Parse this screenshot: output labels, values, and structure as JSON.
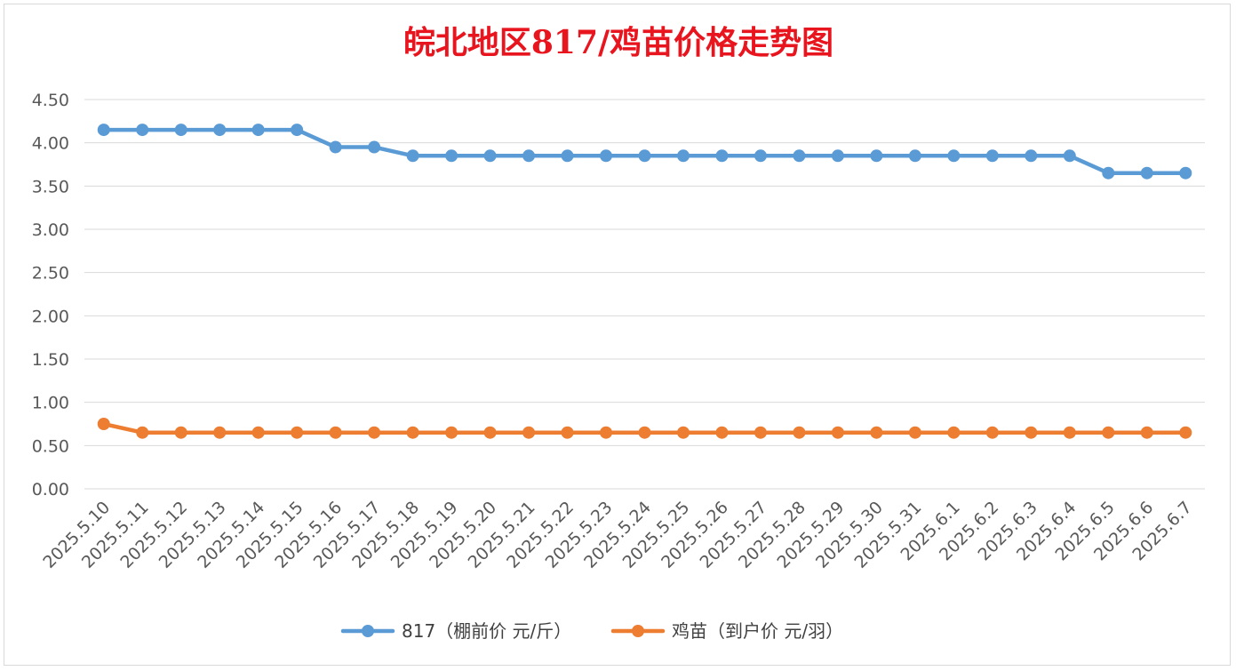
{
  "chart_data": {
    "type": "line",
    "title": "皖北地区817/鸡苗价格走势图",
    "xlabel": "",
    "ylabel": "",
    "ylim": [
      0,
      4.5
    ],
    "yticks": [
      "0.00",
      "0.50",
      "1.00",
      "1.50",
      "2.00",
      "2.50",
      "3.00",
      "3.50",
      "4.00",
      "4.50"
    ],
    "categories": [
      "2025.5.10",
      "2025.5.11",
      "2025.5.12",
      "2025.5.13",
      "2025.5.14",
      "2025.5.15",
      "2025.5.16",
      "2025.5.17",
      "2025.5.18",
      "2025.5.19",
      "2025.5.20",
      "2025.5.21",
      "2025.5.22",
      "2025.5.23",
      "2025.5.24",
      "2025.5.25",
      "2025.5.26",
      "2025.5.27",
      "2025.5.28",
      "2025.5.29",
      "2025.5.30",
      "2025.5.31",
      "2025.6.1",
      "2025.6.2",
      "2025.6.3",
      "2025.6.4",
      "2025.6.5",
      "2025.6.6",
      "2025.6.7"
    ],
    "series": [
      {
        "name": "817（棚前价 元/斤）",
        "color": "#5b9bd5",
        "values": [
          4.15,
          4.15,
          4.15,
          4.15,
          4.15,
          4.15,
          3.95,
          3.95,
          3.85,
          3.85,
          3.85,
          3.85,
          3.85,
          3.85,
          3.85,
          3.85,
          3.85,
          3.85,
          3.85,
          3.85,
          3.85,
          3.85,
          3.85,
          3.85,
          3.85,
          3.85,
          3.65,
          3.65,
          3.65
        ]
      },
      {
        "name": "鸡苗（到户价 元/羽）",
        "color": "#ed7d31",
        "values": [
          0.75,
          0.65,
          0.65,
          0.65,
          0.65,
          0.65,
          0.65,
          0.65,
          0.65,
          0.65,
          0.65,
          0.65,
          0.65,
          0.65,
          0.65,
          0.65,
          0.65,
          0.65,
          0.65,
          0.65,
          0.65,
          0.65,
          0.65,
          0.65,
          0.65,
          0.65,
          0.65,
          0.65,
          0.65
        ]
      }
    ],
    "grid": true,
    "legend_position": "bottom"
  }
}
